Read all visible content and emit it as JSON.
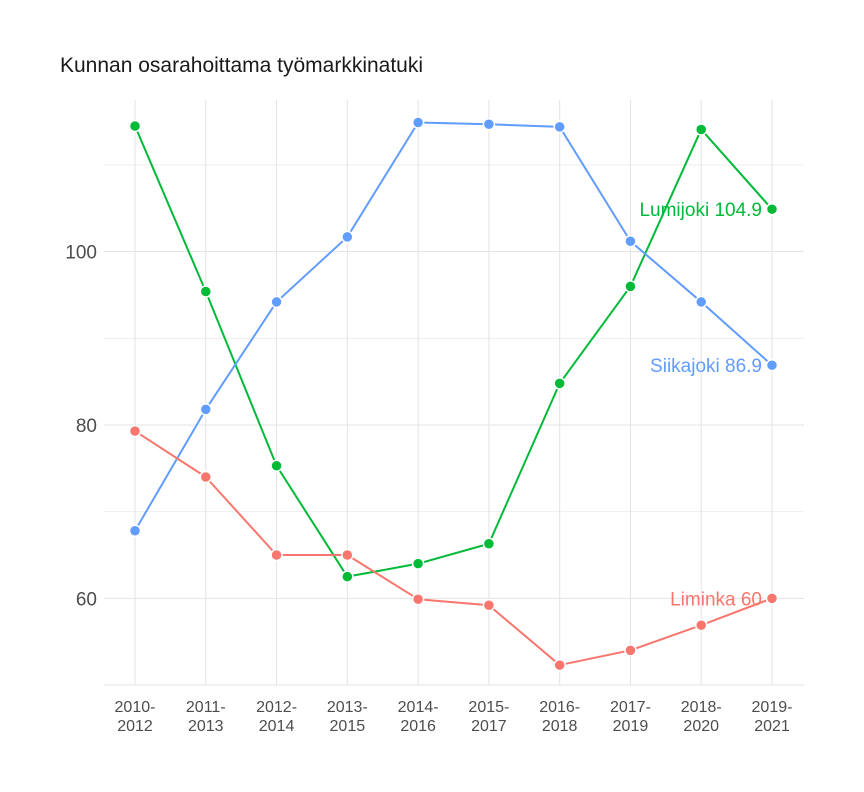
{
  "chart_data": {
    "type": "line",
    "title": "Kunnan osarahoittama työmarkkinatuki",
    "xlabel": "",
    "ylabel": "",
    "categories": [
      [
        "2010-",
        "2012"
      ],
      [
        "2011-",
        "2013"
      ],
      [
        "2012-",
        "2014"
      ],
      [
        "2013-",
        "2015"
      ],
      [
        "2014-",
        "2016"
      ],
      [
        "2015-",
        "2017"
      ],
      [
        "2016-",
        "2018"
      ],
      [
        "2017-",
        "2019"
      ],
      [
        "2018-",
        "2020"
      ],
      [
        "2019-",
        "2021"
      ]
    ],
    "y_ticks": [
      60,
      80,
      100
    ],
    "ylim": [
      50,
      117.5
    ],
    "grid": true,
    "legend": "none",
    "series": [
      {
        "name": "Lumijoki",
        "color": "#00ba38",
        "values": [
          114.5,
          95.4,
          75.3,
          62.5,
          64.0,
          66.3,
          84.8,
          96.0,
          114.1,
          104.9
        ],
        "end_label": "Lumijoki 104.9"
      },
      {
        "name": "Siikajoki",
        "color": "#619cff",
        "values": [
          67.8,
          81.8,
          94.2,
          101.7,
          114.9,
          114.7,
          114.4,
          101.2,
          94.2,
          86.9
        ],
        "end_label": "Siikajoki 86.9"
      },
      {
        "name": "Liminka",
        "color": "#f8766d",
        "values": [
          79.3,
          74.0,
          65.0,
          65.0,
          59.9,
          59.2,
          52.3,
          54.0,
          56.9,
          60.0
        ],
        "end_label": "Liminka 60"
      }
    ]
  }
}
